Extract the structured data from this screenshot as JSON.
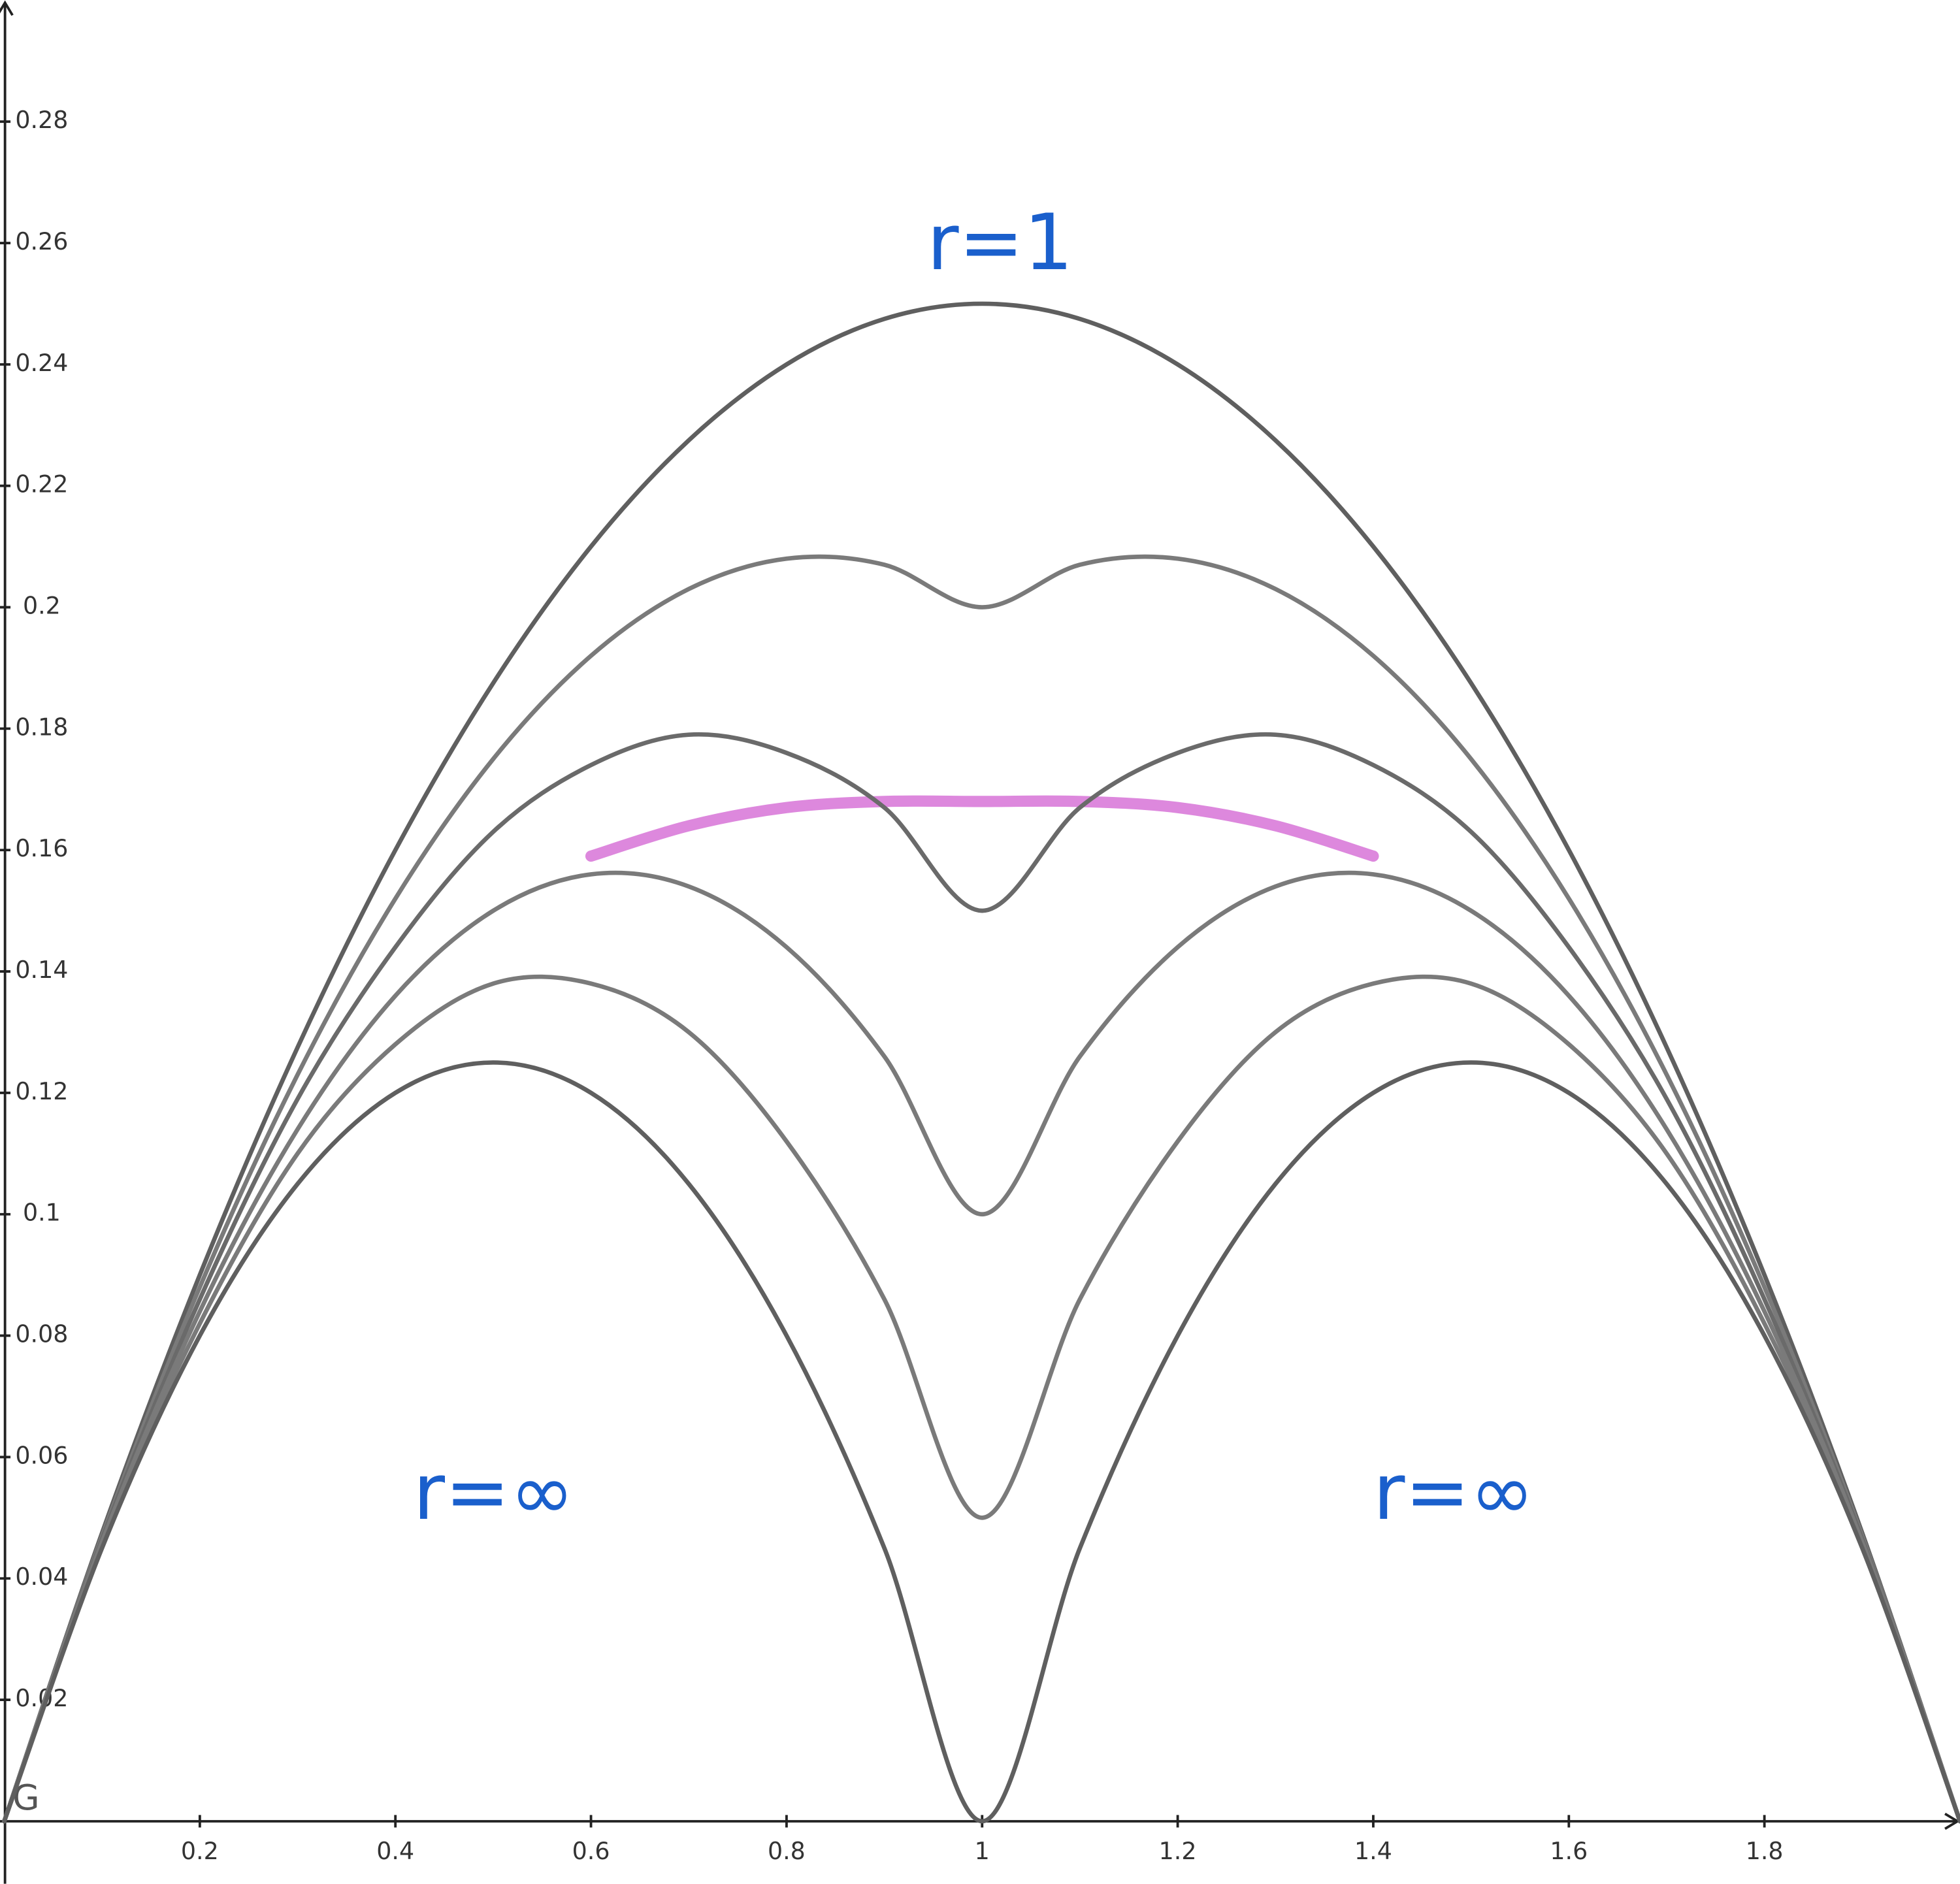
{
  "chart_data": {
    "type": "line",
    "annotations": [
      "r=1",
      "r=∞",
      "r=∞"
    ],
    "watermark": "G",
    "x": [
      0,
      0.1,
      0.2,
      0.3,
      0.4,
      0.5,
      0.6,
      0.7,
      0.8,
      0.9,
      1,
      1.1,
      1.2,
      1.3,
      1.4,
      1.5,
      1.6,
      1.7,
      1.8,
      1.9,
      2
    ],
    "series": [
      {
        "color": "#5f5f5f",
        "values": [
          0,
          0.0475,
          0.09,
          0.1275,
          0.16,
          0.1875,
          0.21,
          0.2275,
          0.24,
          0.2475,
          0.25,
          0.2475,
          0.24,
          0.2275,
          0.21,
          0.1875,
          0.16,
          0.1275,
          0.09,
          0.0475,
          0
        ]
      },
      {
        "color": "#7a7a7a",
        "values": [
          0,
          0.047,
          0.088,
          0.123,
          0.152,
          0.175,
          0.192,
          0.203,
          0.208,
          0.207,
          0.2,
          0.207,
          0.208,
          0.203,
          0.192,
          0.175,
          0.152,
          0.123,
          0.088,
          0.047,
          0
        ]
      },
      {
        "color": "#dd88dd",
        "values": [
          null,
          null,
          null,
          null,
          null,
          null,
          0.159,
          0.164,
          0.167,
          0.168,
          0.168,
          0.168,
          0.167,
          0.164,
          0.159,
          null,
          null,
          null,
          null,
          null,
          null
        ]
      },
      {
        "color": "#6a6a6a",
        "values": [
          0,
          0.0465,
          0.086,
          0.119,
          0.144,
          0.163,
          0.174,
          0.179,
          0.176,
          0.167,
          0.15,
          0.167,
          0.176,
          0.179,
          0.174,
          0.163,
          0.144,
          0.119,
          0.086,
          0.0465,
          0
        ]
      },
      {
        "color": "#7a7a7a",
        "values": [
          0,
          0.046,
          0.084,
          0.114,
          0.136,
          0.15,
          0.156,
          0.154,
          0.144,
          0.126,
          0.1,
          0.126,
          0.144,
          0.154,
          0.156,
          0.15,
          0.136,
          0.114,
          0.084,
          0.046,
          0
        ]
      },
      {
        "color": "#7a7a7a",
        "values": [
          0,
          0.046,
          0.082,
          0.11,
          0.128,
          0.138,
          0.138,
          0.13,
          0.112,
          0.086,
          0.05,
          0.086,
          0.112,
          0.13,
          0.138,
          0.138,
          0.128,
          0.11,
          0.082,
          0.046,
          0
        ]
      },
      {
        "color": "#5f5f5f",
        "values": [
          0,
          0.045,
          0.08,
          0.105,
          0.12,
          0.125,
          0.12,
          0.105,
          0.08,
          0.045,
          0,
          0.045,
          0.08,
          0.105,
          0.12,
          0.125,
          0.12,
          0.105,
          0.08,
          0.045,
          0
        ]
      }
    ],
    "xlim": [
      0,
      2
    ],
    "ylim": [
      -0.0103,
      0.3
    ],
    "xticks": [
      0.2,
      0.4,
      0.6,
      0.8,
      1,
      1.2,
      1.4,
      1.6,
      1.8
    ],
    "yticks": [
      0.02,
      0.04,
      0.06,
      0.08,
      0.1,
      0.12,
      0.14,
      0.16,
      0.18,
      0.2,
      0.22,
      0.24,
      0.26,
      0.28
    ],
    "grid": false
  }
}
